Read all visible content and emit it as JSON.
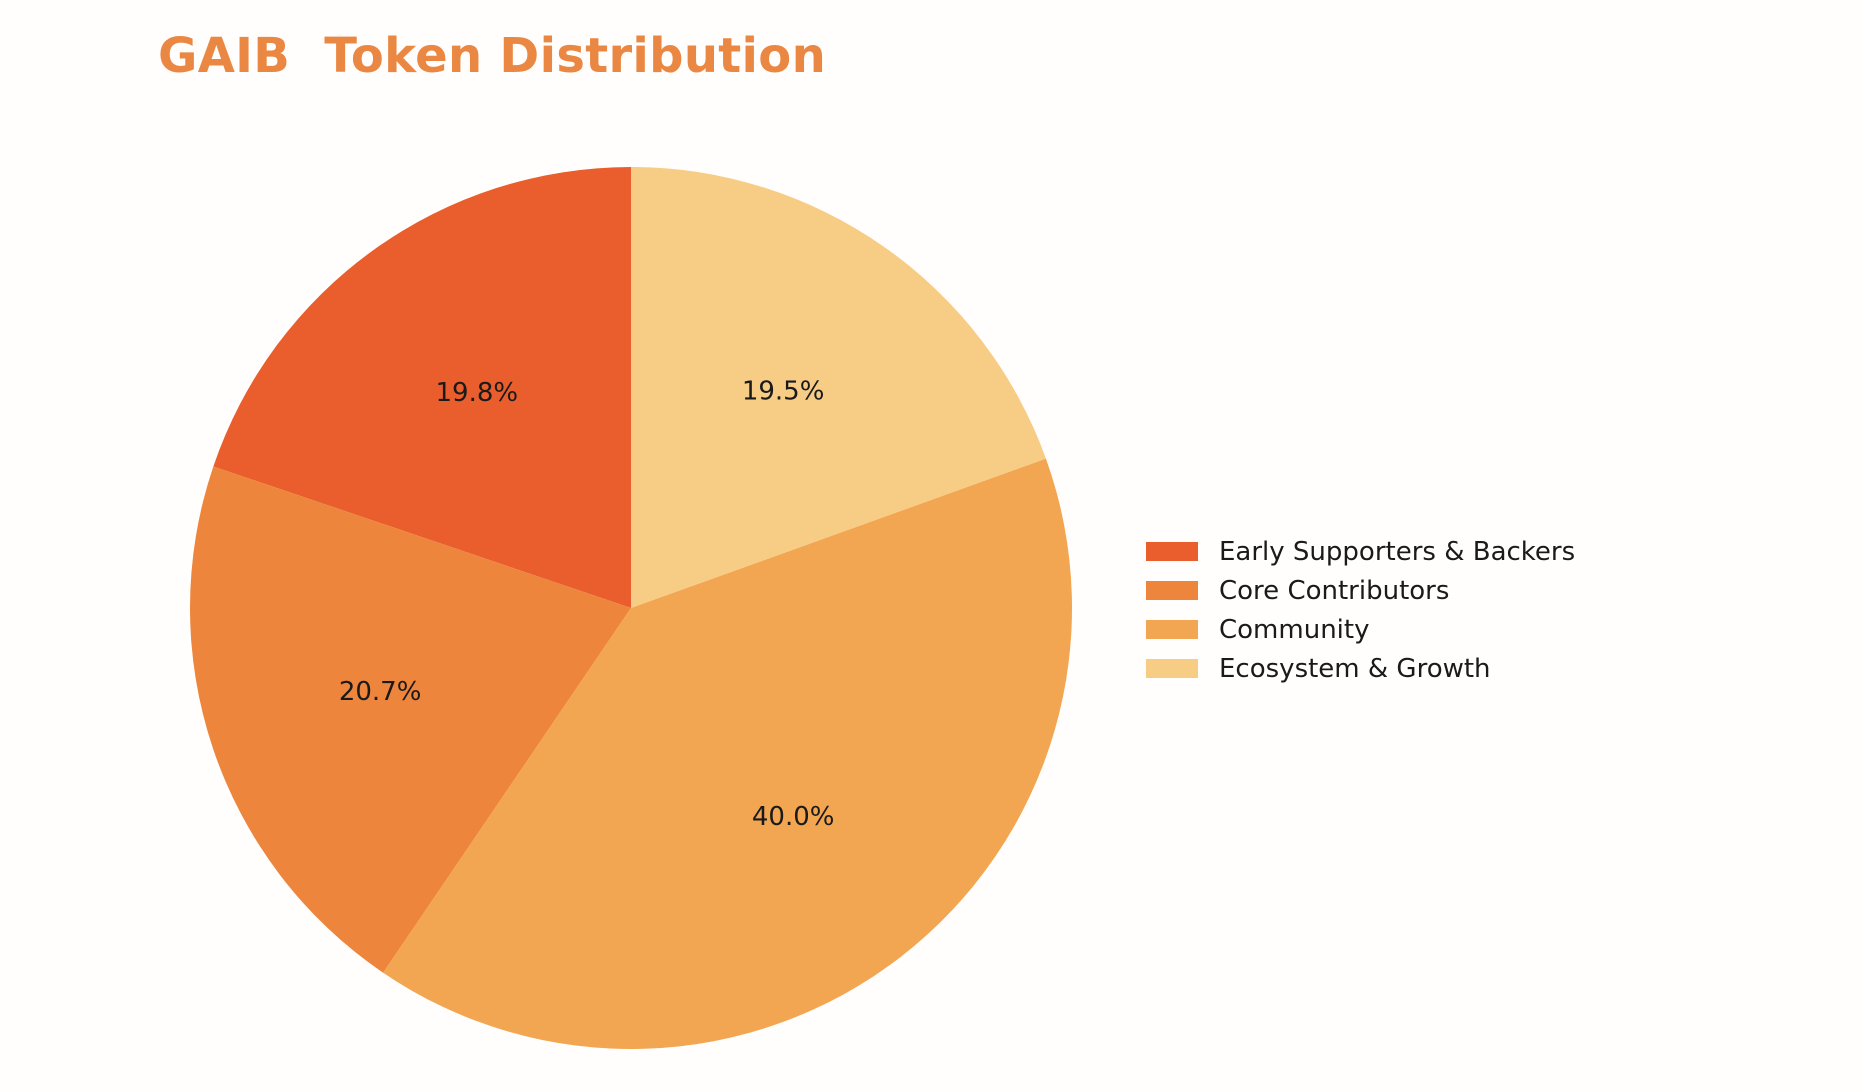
{
  "chart_data": {
    "type": "pie",
    "title": "GAIB  Token Distribution",
    "title_color": "#ea8843",
    "start_angle_deg": 90,
    "direction": "counterclockwise",
    "slices": [
      {
        "name": "Early Supporters & Backers",
        "value": 19.8,
        "label": "19.8%",
        "color": "#e95e2c"
      },
      {
        "name": "Core Contributors",
        "value": 20.7,
        "label": "20.7%",
        "color": "#ee853c"
      },
      {
        "name": "Community",
        "value": 40.0,
        "label": "40.0%",
        "color": "#f2a652"
      },
      {
        "name": "Ecosystem & Growth",
        "value": 19.5,
        "label": "19.5%",
        "color": "#f7cc85"
      }
    ],
    "legend_position": "right"
  }
}
